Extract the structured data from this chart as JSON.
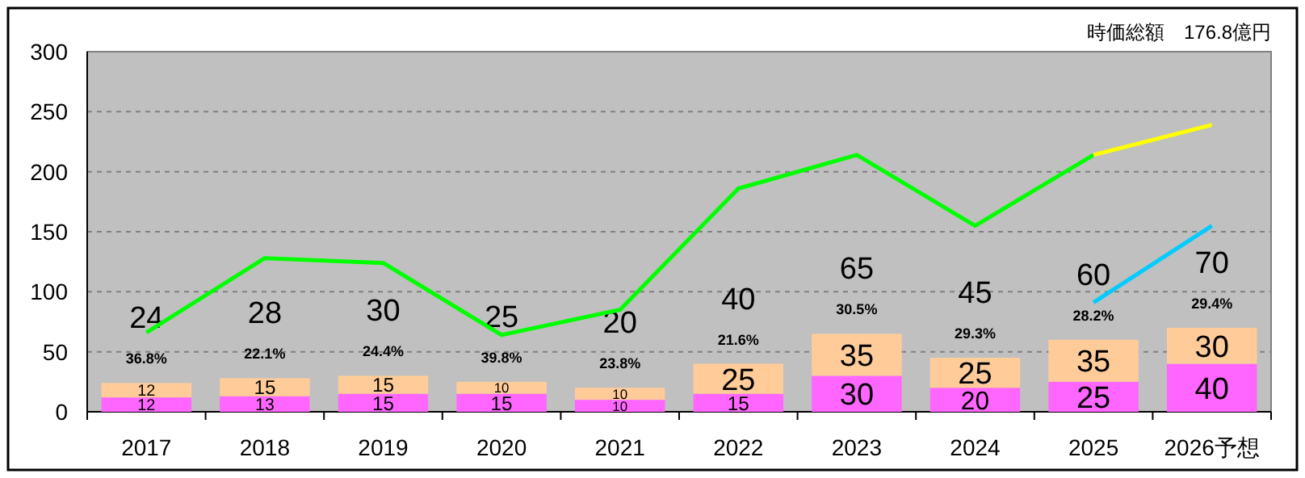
{
  "chart_data": {
    "type": "bar",
    "title": "時価総額　176.8億円",
    "stacked": true,
    "categories": [
      "2017",
      "2018",
      "2019",
      "2020",
      "2021",
      "2022",
      "2023",
      "2024",
      "2025",
      "2026予想"
    ],
    "series": [
      {
        "color": "#ff66ff",
        "values": [
          12,
          13,
          15,
          15,
          10,
          15,
          30,
          20,
          25,
          40
        ],
        "value_labels": [
          "12",
          "13",
          "15",
          "15",
          "10",
          "15",
          "30",
          "20",
          "25",
          "40"
        ]
      },
      {
        "color": "#ffcc99",
        "values": [
          12,
          15,
          15,
          10,
          10,
          25,
          35,
          25,
          35,
          30
        ],
        "value_labels": [
          "12",
          "15",
          "15",
          "10",
          "10",
          "25",
          "35",
          "25",
          "35",
          "30"
        ]
      },
      {
        "type": "line",
        "color": "#00ff00",
        "values": [
          66,
          128,
          124,
          64,
          85,
          186,
          214,
          155,
          214,
          null
        ]
      },
      {
        "type": "line",
        "color": "#ffff00",
        "values": [
          null,
          null,
          null,
          null,
          null,
          null,
          null,
          null,
          214,
          239
        ]
      },
      {
        "type": "line",
        "color": "#00ccff",
        "values": [
          null,
          null,
          null,
          null,
          null,
          null,
          null,
          null,
          91,
          155
        ]
      }
    ],
    "totals": [
      "24",
      "28",
      "30",
      "25",
      "20",
      "40",
      "65",
      "45",
      "60",
      "70"
    ],
    "annotations": [
      "36.8%",
      "22.1%",
      "24.4%",
      "39.8%",
      "23.8%",
      "21.6%",
      "30.5%",
      "29.3%",
      "28.2%",
      "29.4%"
    ],
    "ylim": [
      0,
      300
    ],
    "yticks": [
      0,
      50,
      100,
      150,
      200,
      250,
      300
    ],
    "grid": "y",
    "line_style": "solid"
  }
}
